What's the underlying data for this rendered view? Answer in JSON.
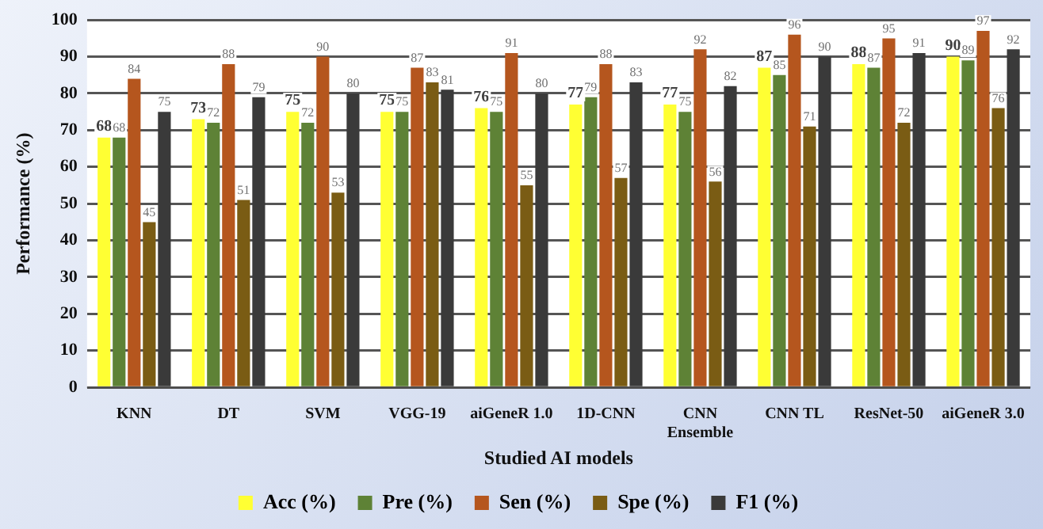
{
  "chart_data": {
    "type": "bar",
    "xlabel": "Studied AI models",
    "ylabel": "Performance (%)",
    "categories": [
      "KNN",
      "DT",
      "SVM",
      "VGG-19",
      "aiGeneR 1.0",
      "1D-CNN",
      "CNN Ensemble",
      "CNN TL",
      "ResNet-50",
      "aiGeneR 3.0"
    ],
    "series": [
      {
        "name": "Acc (%)",
        "color": "#ffff33",
        "values": [
          68,
          73,
          75,
          75,
          76,
          77,
          77,
          87,
          88,
          90
        ]
      },
      {
        "name": "Pre (%)",
        "color": "#5e8236",
        "values": [
          68,
          72,
          72,
          75,
          75,
          79,
          75,
          85,
          87,
          89
        ]
      },
      {
        "name": "Sen (%)",
        "color": "#b5561e",
        "values": [
          84,
          88,
          90,
          87,
          91,
          88,
          92,
          96,
          95,
          97
        ]
      },
      {
        "name": "Spe (%)",
        "color": "#7a5c14",
        "values": [
          45,
          51,
          53,
          83,
          55,
          57,
          56,
          71,
          72,
          76
        ]
      },
      {
        "name": "F1 (%)",
        "color": "#3a3a3a",
        "values": [
          75,
          79,
          80,
          81,
          80,
          83,
          82,
          90,
          91,
          92
        ]
      }
    ],
    "ylim": [
      0,
      100
    ],
    "yticks": [
      0,
      10,
      20,
      30,
      40,
      50,
      60,
      70,
      80,
      90,
      100
    ],
    "grid": "y",
    "legend": "bottom",
    "data_labels": true
  }
}
